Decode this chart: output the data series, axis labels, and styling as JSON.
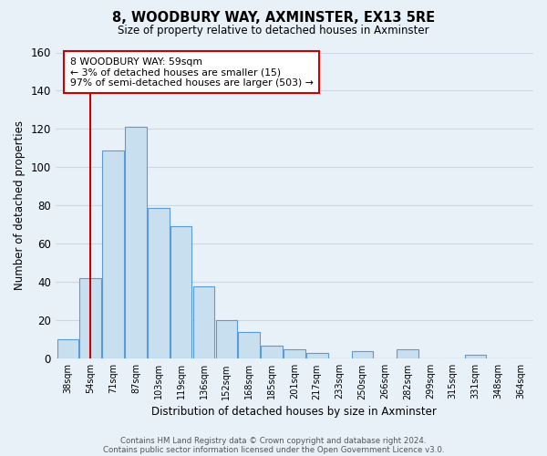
{
  "title": "8, WOODBURY WAY, AXMINSTER, EX13 5RE",
  "subtitle": "Size of property relative to detached houses in Axminster",
  "xlabel": "Distribution of detached houses by size in Axminster",
  "ylabel": "Number of detached properties",
  "bar_labels": [
    "38sqm",
    "54sqm",
    "71sqm",
    "87sqm",
    "103sqm",
    "119sqm",
    "136sqm",
    "152sqm",
    "168sqm",
    "185sqm",
    "201sqm",
    "217sqm",
    "233sqm",
    "250sqm",
    "266sqm",
    "282sqm",
    "299sqm",
    "315sqm",
    "331sqm",
    "348sqm",
    "364sqm"
  ],
  "bar_values": [
    10,
    42,
    109,
    121,
    79,
    69,
    38,
    20,
    14,
    7,
    5,
    3,
    0,
    4,
    0,
    5,
    0,
    0,
    2,
    0,
    0
  ],
  "bar_color": "#c8dff0",
  "bar_edge_color": "#5b9bd5",
  "vline_color": "#cc0000",
  "vline_position": 1.5,
  "annotation_text": "8 WOODBURY WAY: 59sqm\n← 3% of detached houses are smaller (15)\n97% of semi-detached houses are larger (503) →",
  "annotation_box_color": "#ffffff",
  "annotation_box_edge": "#cc0000",
  "ylim": [
    0,
    160
  ],
  "yticks": [
    0,
    20,
    40,
    60,
    80,
    100,
    120,
    140,
    160
  ],
  "grid_color": "#c8d8e8",
  "background_color": "#e8f0f8",
  "footer1": "Contains HM Land Registry data © Crown copyright and database right 2024.",
  "footer2": "Contains public sector information licensed under the Open Government Licence v3.0."
}
